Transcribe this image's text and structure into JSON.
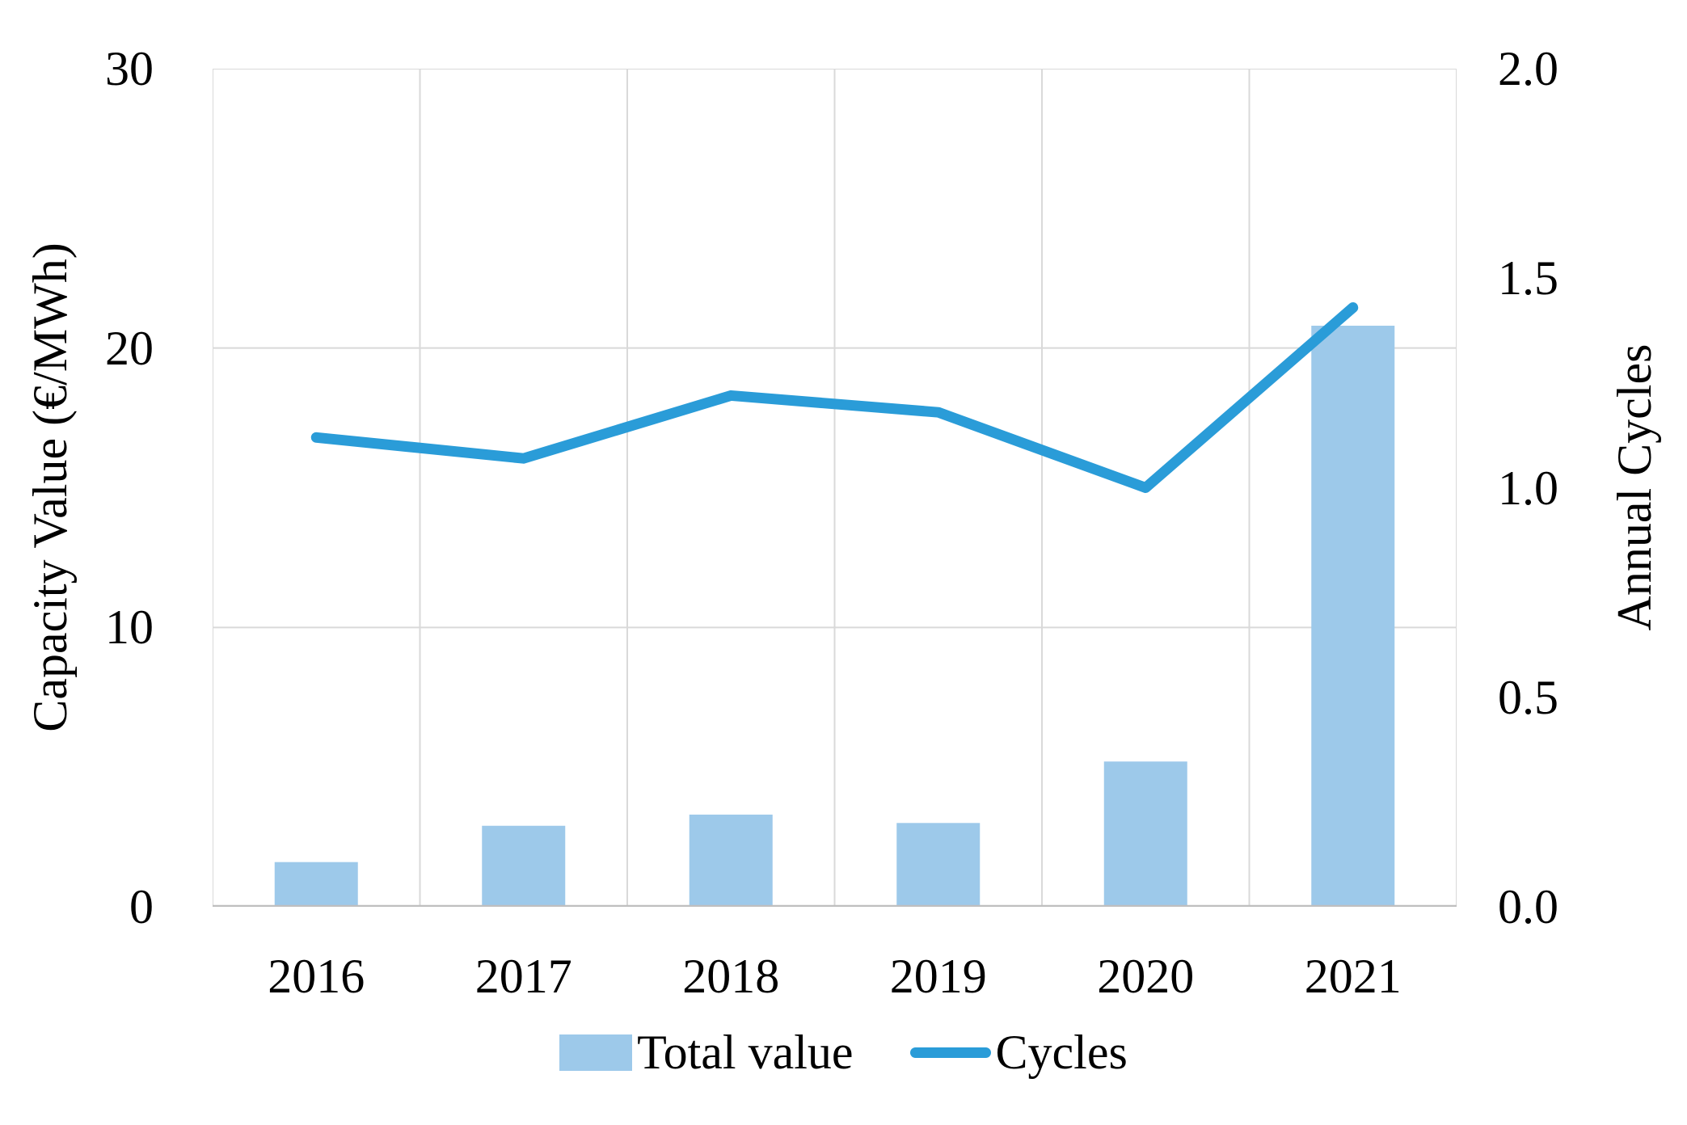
{
  "chart_data": {
    "type": "combo-bar-line",
    "categories": [
      "2016",
      "2017",
      "2018",
      "2019",
      "2020",
      "2021"
    ],
    "series": [
      {
        "name": "Total value",
        "type": "bar",
        "axis": "left",
        "values": [
          1.6,
          2.9,
          3.3,
          3.0,
          5.2,
          20.8
        ],
        "color": "#9DC9EA"
      },
      {
        "name": "Cycles",
        "type": "line",
        "axis": "right",
        "values": [
          1.12,
          1.07,
          1.22,
          1.18,
          1.0,
          1.43
        ],
        "color": "#2A9CD8"
      }
    ],
    "left_axis": {
      "label": "Capacity Value (€/MWh)",
      "range": [
        0,
        30
      ],
      "ticks": [
        0,
        10,
        20,
        30
      ],
      "tick_labels": [
        "0",
        "10",
        "20",
        "30"
      ]
    },
    "right_axis": {
      "label": "Annual Cycles",
      "range": [
        0,
        2
      ],
      "ticks": [
        0,
        0.5,
        1,
        1.5,
        2
      ],
      "tick_labels": [
        "0.0",
        "0.5",
        "1.0",
        "1.5",
        "2.0"
      ]
    },
    "grid": true,
    "legend_position": "bottom",
    "colors": {
      "gridline": "#D9D9D9",
      "axis_line": "#BFBFBF",
      "text": "#000000",
      "background": "#FFFFFF"
    }
  }
}
